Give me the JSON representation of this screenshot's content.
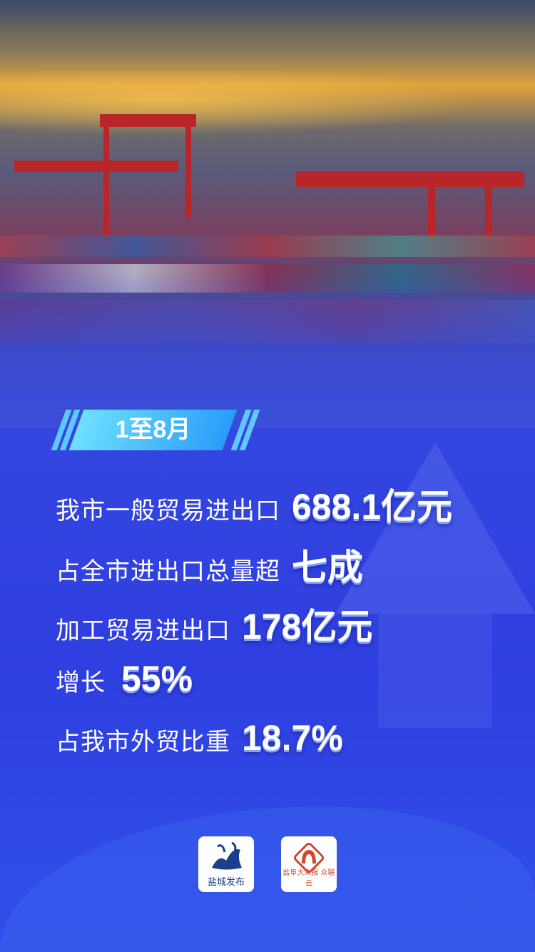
{
  "period_badge": "1至8月",
  "stats": [
    {
      "label": "我市一般贸易进出口",
      "value": "688.1亿元"
    },
    {
      "label": "占全市进出口总量超",
      "value": "七成"
    },
    {
      "label": "加工贸易进出口",
      "value": "178亿元"
    },
    {
      "label": "增长",
      "value": "55%"
    },
    {
      "label": "占我市外贸比重",
      "value": "18.7%"
    }
  ],
  "logos": [
    {
      "name": "盐城发布",
      "color": "#1c3f8c"
    },
    {
      "name": "盐阜大众报 众联云",
      "color": "#d2462a"
    }
  ],
  "colors": {
    "background": "#3346e0",
    "badge": "#2a9cf8",
    "logo_blue": "#1c3f8c",
    "logo_red": "#d2462a"
  }
}
